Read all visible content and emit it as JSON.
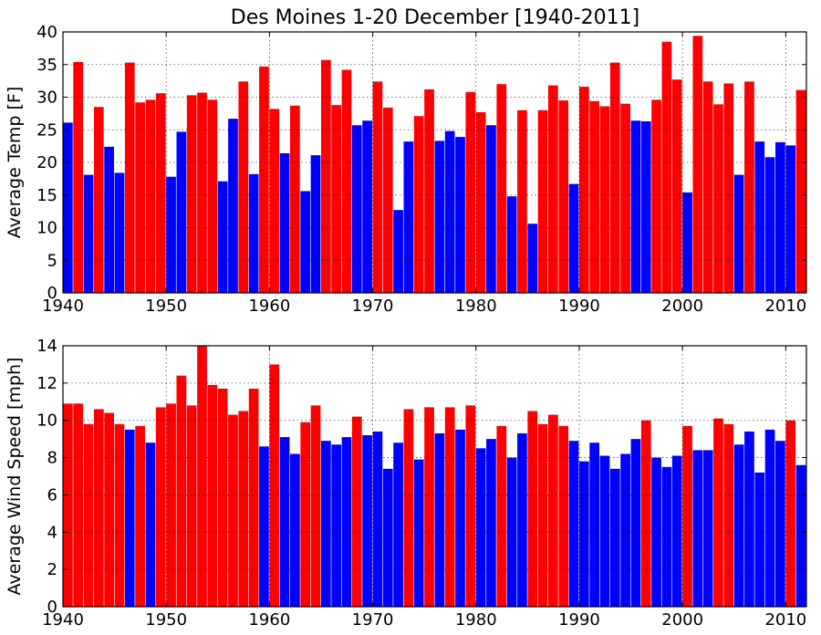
{
  "title": "Des Moines 1-20 December [1940-2011]",
  "colors": {
    "above": "#ff0000",
    "below": "#0000ff"
  },
  "chart_data": [
    {
      "type": "bar",
      "ylabel": "Average Temp [F]",
      "xlabel": "",
      "xlim": [
        1940,
        2012
      ],
      "ylim": [
        0,
        40
      ],
      "xticks": [
        1940,
        1950,
        1960,
        1970,
        1980,
        1990,
        2000,
        2010
      ],
      "yticks": [
        0,
        5,
        10,
        15,
        20,
        25,
        30,
        35,
        40
      ],
      "grid": true,
      "x": [
        1940,
        1941,
        1942,
        1943,
        1944,
        1945,
        1946,
        1947,
        1948,
        1949,
        1950,
        1951,
        1952,
        1953,
        1954,
        1955,
        1956,
        1957,
        1958,
        1959,
        1960,
        1961,
        1962,
        1963,
        1964,
        1965,
        1966,
        1967,
        1968,
        1969,
        1970,
        1971,
        1972,
        1973,
        1974,
        1975,
        1976,
        1977,
        1978,
        1979,
        1980,
        1981,
        1982,
        1983,
        1984,
        1985,
        1986,
        1987,
        1988,
        1989,
        1990,
        1991,
        1992,
        1993,
        1994,
        1995,
        1996,
        1997,
        1998,
        1999,
        2000,
        2001,
        2002,
        2003,
        2004,
        2005,
        2006,
        2007,
        2008,
        2009,
        2010,
        2011
      ],
      "values": [
        26.1,
        35.4,
        18.1,
        28.5,
        22.4,
        18.4,
        35.3,
        29.2,
        29.6,
        30.6,
        17.8,
        24.7,
        30.3,
        30.7,
        29.6,
        17.1,
        26.7,
        32.4,
        18.2,
        34.7,
        28.2,
        21.4,
        28.7,
        15.6,
        21.1,
        35.7,
        28.8,
        34.2,
        25.7,
        26.4,
        32.4,
        28.4,
        12.7,
        23.2,
        27.1,
        31.2,
        23.3,
        24.8,
        23.9,
        30.8,
        27.7,
        25.7,
        32.0,
        14.8,
        28.0,
        10.6,
        28.0,
        31.8,
        29.5,
        16.7,
        31.6,
        29.4,
        28.6,
        35.3,
        29.0,
        26.4,
        26.3,
        29.6,
        38.5,
        32.7,
        15.4,
        39.4,
        32.4,
        28.9,
        32.1,
        18.1,
        32.4,
        23.2,
        20.8,
        23.1,
        22.6,
        31.1
      ],
      "color_codes": "BRBRBBRRRRBBRRRBBRBRRBRBBRRRBBRRBBRRBBBRRBRBRBRRRBRRRRRBBRRRBRRRRBRBBBBR"
    },
    {
      "type": "bar",
      "ylabel": "Average Wind Speed [mph]",
      "xlabel": "",
      "xlim": [
        1940,
        2012
      ],
      "ylim": [
        0,
        14
      ],
      "xticks": [
        1940,
        1950,
        1960,
        1970,
        1980,
        1990,
        2000,
        2010
      ],
      "yticks": [
        0,
        2,
        4,
        6,
        8,
        10,
        12,
        14
      ],
      "grid": true,
      "x": [
        1940,
        1941,
        1942,
        1943,
        1944,
        1945,
        1946,
        1947,
        1948,
        1949,
        1950,
        1951,
        1952,
        1953,
        1954,
        1955,
        1956,
        1957,
        1958,
        1959,
        1960,
        1961,
        1962,
        1963,
        1964,
        1965,
        1966,
        1967,
        1968,
        1969,
        1970,
        1971,
        1972,
        1973,
        1974,
        1975,
        1976,
        1977,
        1978,
        1979,
        1980,
        1981,
        1982,
        1983,
        1984,
        1985,
        1986,
        1987,
        1988,
        1989,
        1990,
        1991,
        1992,
        1993,
        1994,
        1995,
        1996,
        1997,
        1998,
        1999,
        2000,
        2001,
        2002,
        2003,
        2004,
        2005,
        2006,
        2007,
        2008,
        2009,
        2010,
        2011
      ],
      "values": [
        10.9,
        10.9,
        9.8,
        10.6,
        10.4,
        9.8,
        9.5,
        9.7,
        8.8,
        10.7,
        10.9,
        12.4,
        10.8,
        14.0,
        11.9,
        11.7,
        10.3,
        10.5,
        11.7,
        8.6,
        13.0,
        9.1,
        8.2,
        9.9,
        10.8,
        8.9,
        8.7,
        9.1,
        10.2,
        9.2,
        9.4,
        7.4,
        8.8,
        10.6,
        7.9,
        10.7,
        9.3,
        10.7,
        9.5,
        10.8,
        8.5,
        9.0,
        9.7,
        8.0,
        9.3,
        10.5,
        9.8,
        10.3,
        9.7,
        8.9,
        7.8,
        8.8,
        8.1,
        7.4,
        8.2,
        9.0,
        10.0,
        8.0,
        7.5,
        8.1,
        9.7,
        8.4,
        8.4,
        10.1,
        9.8,
        8.7,
        9.4,
        7.2,
        9.5,
        8.9,
        10.0,
        7.6
      ],
      "color_codes": "RRRRRRBRBRRRRRRRRRRBRBBRRBBBRBBBBRBRBRBRBBRBBRRRRBBBBBBBRBBBRBBRRBBBBBRB"
    }
  ]
}
